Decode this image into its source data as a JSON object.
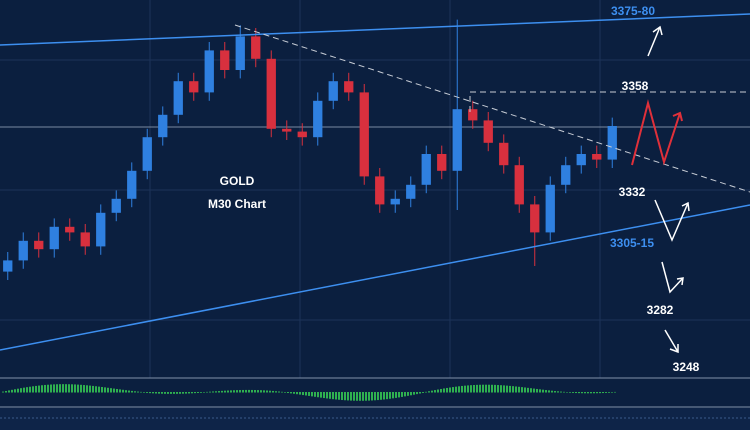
{
  "chart_data": {
    "type": "candlestick",
    "title": "GOLD",
    "subtitle": "M30 Chart",
    "ylim": [
      3256,
      3391
    ],
    "up_color": "#2f80e0",
    "down_color": "#d8303e",
    "open": [
      3294,
      3298,
      3305,
      3302,
      3310,
      3308,
      3303,
      3315,
      3320,
      3330,
      3342,
      3350,
      3362,
      3358,
      3373,
      3366,
      3378,
      3370,
      3345,
      3344,
      3342,
      3355,
      3362,
      3358,
      3328,
      3318,
      3320,
      3325,
      3336,
      3330,
      3352,
      3348,
      3340,
      3332,
      3318,
      3308,
      3325,
      3332,
      3336,
      3334
    ],
    "high": [
      3301,
      3308,
      3308,
      3313,
      3313,
      3311,
      3318,
      3323,
      3333,
      3345,
      3353,
      3365,
      3365,
      3376,
      3376,
      3382,
      3381,
      3373,
      3348,
      3347,
      3358,
      3365,
      3365,
      3361,
      3331,
      3323,
      3328,
      3339,
      3339,
      3384,
      3355,
      3351,
      3343,
      3335,
      3321,
      3328,
      3335,
      3339,
      3339,
      3349
    ],
    "low": [
      3291,
      3295,
      3299,
      3299,
      3305,
      3300,
      3300,
      3312,
      3317,
      3327,
      3339,
      3347,
      3355,
      3355,
      3363,
      3363,
      3367,
      3342,
      3341,
      3339,
      3339,
      3352,
      3355,
      3325,
      3315,
      3315,
      3317,
      3322,
      3327,
      3316,
      3345,
      3337,
      3329,
      3315,
      3296,
      3305,
      3322,
      3329,
      3331,
      3331
    ],
    "close": [
      3298,
      3305,
      3302,
      3310,
      3308,
      3303,
      3315,
      3320,
      3330,
      3342,
      3350,
      3362,
      3358,
      3373,
      3366,
      3378,
      3370,
      3345,
      3344,
      3342,
      3355,
      3362,
      3358,
      3328,
      3318,
      3320,
      3325,
      3336,
      3330,
      3352,
      3348,
      3340,
      3332,
      3318,
      3308,
      3325,
      3332,
      3336,
      3334,
      3346
    ],
    "annotations": [
      "3375-80",
      "3358",
      "3332",
      "3305-15",
      "3282",
      "3248"
    ]
  }
}
